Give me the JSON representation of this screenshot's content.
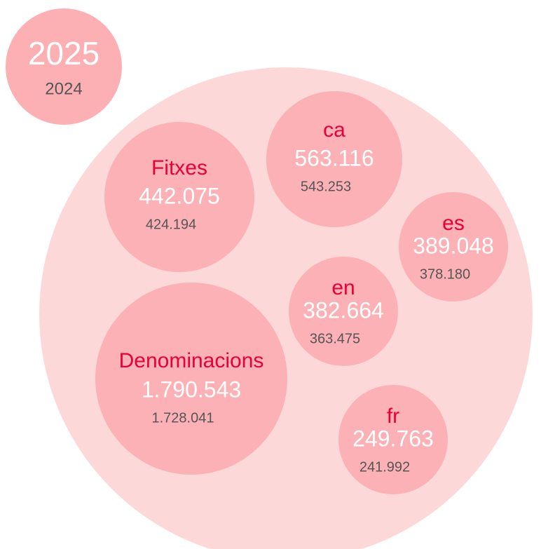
{
  "legend": {
    "current": "2025",
    "previous": "2024"
  },
  "bubbles": [
    {
      "label": "Fitxes",
      "current": "442.075",
      "previous": "424.194"
    },
    {
      "label": "ca",
      "current": "563.116",
      "previous": "543.253"
    },
    {
      "label": "es",
      "current": "389.048",
      "previous": "378.180"
    },
    {
      "label": "en",
      "current": "382.664",
      "previous": "363.475"
    },
    {
      "label": "Denominacions",
      "current": "1.790.543",
      "previous": "1.728.041"
    },
    {
      "label": "fr",
      "current": "249.763",
      "previous": "241.992"
    }
  ]
}
